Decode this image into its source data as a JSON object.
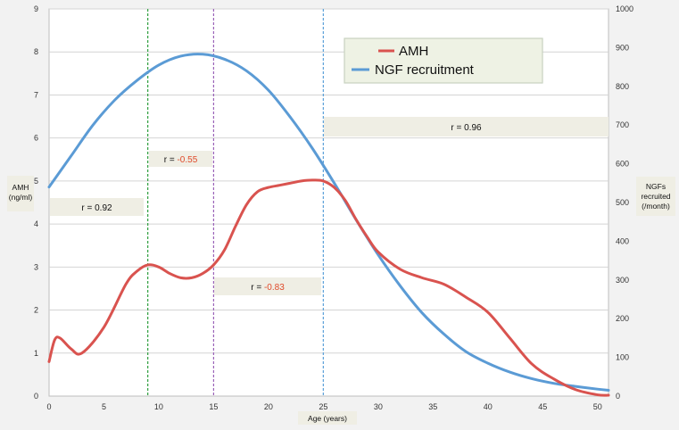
{
  "chart_data": {
    "type": "line",
    "xlabel": "Age (years)",
    "y_left_label": [
      "AMH",
      "(ng/ml)"
    ],
    "y_right_label": [
      "NGFs",
      "recruited",
      "(/month)"
    ],
    "xlim": [
      0,
      51
    ],
    "ylim_left": [
      0,
      9
    ],
    "ylim_right": [
      0,
      1000
    ],
    "x_ticks": [
      "0",
      "5",
      "10",
      "15",
      "20",
      "25",
      "30",
      "35",
      "40",
      "45",
      "50"
    ],
    "y_left_ticks": [
      "0",
      "1",
      "2",
      "3",
      "4",
      "5",
      "6",
      "7",
      "8",
      "9"
    ],
    "y_right_ticks": [
      "0",
      "100",
      "200",
      "300",
      "400",
      "500",
      "600",
      "700",
      "800",
      "900",
      "1000"
    ],
    "grid": "horizontal",
    "legend_position": "top-center-right",
    "series": [
      {
        "name": "AMH",
        "axis": "left",
        "color": "#d9534f",
        "x": [
          0,
          0.5,
          1,
          2,
          3,
          5,
          7,
          8,
          9,
          10,
          11,
          12,
          13,
          14,
          15,
          16,
          17,
          18,
          19,
          20,
          21,
          22,
          23,
          24,
          25,
          26,
          27,
          28,
          29,
          30,
          32,
          34,
          36,
          38,
          40,
          42,
          44,
          46,
          48,
          50,
          51
        ],
        "y": [
          0.8,
          1.3,
          1.35,
          1.1,
          1.0,
          1.6,
          2.6,
          2.9,
          3.05,
          3.0,
          2.85,
          2.75,
          2.75,
          2.85,
          3.05,
          3.4,
          3.95,
          4.45,
          4.75,
          4.85,
          4.9,
          4.95,
          5.0,
          5.02,
          5.0,
          4.85,
          4.55,
          4.1,
          3.7,
          3.35,
          2.95,
          2.75,
          2.6,
          2.3,
          1.95,
          1.35,
          0.75,
          0.4,
          0.15,
          0.03,
          0.02
        ]
      },
      {
        "name": "NGF recruitment",
        "axis": "right",
        "color": "#5b9bd5",
        "x": [
          0,
          2,
          4,
          6,
          8,
          10,
          12,
          14,
          16,
          18,
          20,
          22,
          24,
          26,
          28,
          30,
          32,
          34,
          36,
          38,
          40,
          42,
          44,
          46,
          48,
          50,
          51
        ],
        "y": [
          540,
          620,
          700,
          765,
          815,
          855,
          878,
          883,
          870,
          840,
          790,
          720,
          640,
          550,
          455,
          365,
          285,
          215,
          160,
          115,
          85,
          62,
          45,
          33,
          25,
          18,
          15
        ]
      }
    ],
    "vlines": [
      {
        "x": 9,
        "color": "#2e9e3e"
      },
      {
        "x": 15,
        "color": "#9a62b8"
      },
      {
        "x": 25,
        "color": "#5aa0d8"
      }
    ],
    "annotations": [
      {
        "prefix": "r = ",
        "value": "0.92",
        "value_color": "#111111"
      },
      {
        "prefix": "r = ",
        "value": "-0.55",
        "value_color": "#e04a2a"
      },
      {
        "prefix": "r = ",
        "value": "-0.83",
        "value_color": "#e04a2a"
      },
      {
        "prefix": "r = ",
        "value": "0.96",
        "value_color": "#111111"
      }
    ]
  }
}
